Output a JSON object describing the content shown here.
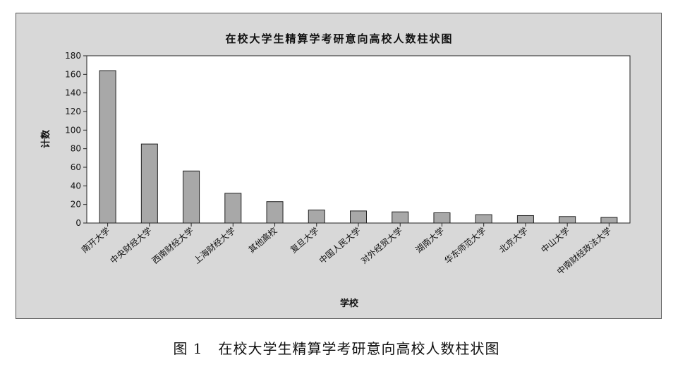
{
  "caption": {
    "figure_number": "图 1",
    "text": "在校大学生精算学考研意向高校人数柱状图"
  },
  "colors": {
    "frame_background": "#d8d8d8",
    "plot_background": "#ffffff",
    "bar_fill": "#a8a8a8",
    "bar_stroke": "#222222"
  },
  "chart_data": {
    "type": "bar",
    "title": "在校大学生精算学考研意向高校人数柱状图",
    "xlabel": "学校",
    "ylabel": "计数",
    "ylim": [
      0,
      180
    ],
    "yticks": [
      0,
      20,
      40,
      60,
      80,
      100,
      120,
      140,
      160,
      180
    ],
    "grid": false,
    "legend": "none",
    "categories": [
      "南开大学",
      "中央财经大学",
      "西南财经大学",
      "上海财经大学",
      "其他高校",
      "复旦大学",
      "中国人民大学",
      "对外经贸大学",
      "湖南大学",
      "华东师范大学",
      "北京大学",
      "中山大学",
      "中南财经政法大学"
    ],
    "values": [
      164,
      85,
      56,
      32,
      23,
      14,
      13,
      12,
      11,
      9,
      8,
      7,
      6
    ]
  }
}
